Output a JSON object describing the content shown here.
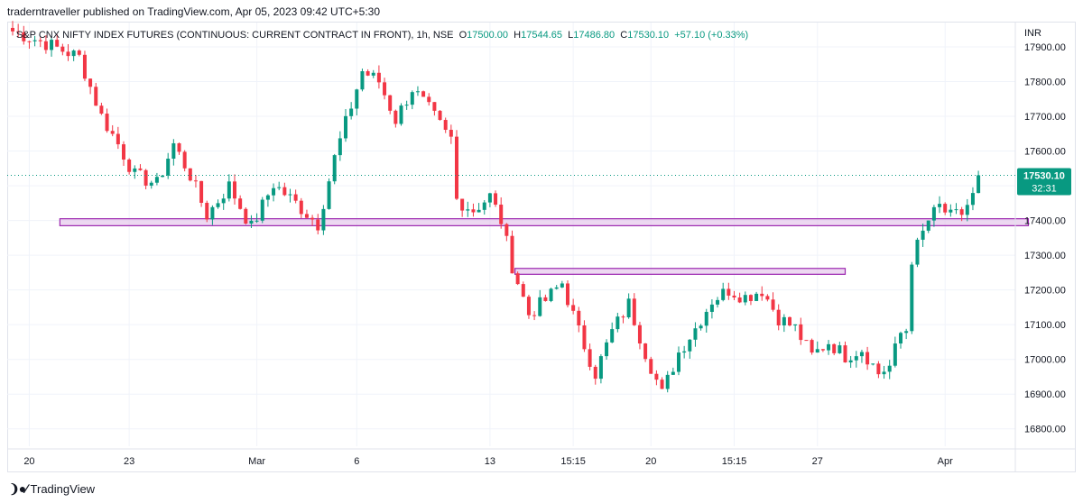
{
  "publish_line": "traderntraveller published on TradingView.com, Apr 05, 2023 09:42 UTC+5:30",
  "header": {
    "symbol": "S&P CNX NIFTY INDEX FUTURES (CONTINUOUS: CURRENT CONTRACT IN FRONT), 1h, NSE",
    "open_label": "O",
    "open_value": "17500.00",
    "high_label": "H",
    "high_value": "17544.65",
    "low_label": "L",
    "low_value": "17486.80",
    "close_label": "C",
    "close_value": "17530.10",
    "change": "+57.10 (+0.33%)"
  },
  "currency": "INR",
  "footer": {
    "brand": "TradingView",
    "icon": "tradingview-logo-icon"
  },
  "colors": {
    "up": "#089981",
    "down": "#f23645",
    "zone_stroke": "#9c27b0",
    "zone_fill": "#e1bee7",
    "grid": "#f0f3fa"
  },
  "chart_data": {
    "type": "candlestick",
    "ylim": [
      16750,
      17970
    ],
    "yticks": [
      17900,
      17800,
      17700,
      17600,
      17500,
      17400,
      17300,
      17200,
      17100,
      17000,
      16900,
      16800
    ],
    "ytick_labels": [
      "17900.00",
      "17800.00",
      "17700.00",
      "17600.00",
      "17500.00",
      "17400.00",
      "17300.00",
      "17200.00",
      "17100.00",
      "17000.00",
      "16900.00",
      "16800.00"
    ],
    "bar_count": 175,
    "xtick_labels": [
      {
        "label": "20",
        "bar": 3
      },
      {
        "label": "23",
        "bar": 21
      },
      {
        "label": "Mar",
        "bar": 44
      },
      {
        "label": "6",
        "bar": 62
      },
      {
        "label": "13",
        "bar": 86
      },
      {
        "label": "15:15",
        "bar": 101
      },
      {
        "label": "20",
        "bar": 115
      },
      {
        "label": "15:15",
        "bar": 130
      },
      {
        "label": "27",
        "bar": 145
      },
      {
        "label": "Apr",
        "bar": 168
      }
    ],
    "last_price": 17530.1,
    "last_price_label": "17530.10",
    "countdown_label": "32:31",
    "zones": [
      {
        "bar_start": 9,
        "bar_end": 183,
        "low": 17385,
        "high": 17405
      },
      {
        "bar_start": 91,
        "bar_end": 150,
        "low": 17245,
        "high": 17262
      }
    ],
    "anchors": [
      {
        "bar": 0,
        "price": 17945
      },
      {
        "bar": 6,
        "price": 17910
      },
      {
        "bar": 12,
        "price": 17870
      },
      {
        "bar": 16,
        "price": 17700
      },
      {
        "bar": 19,
        "price": 17620
      },
      {
        "bar": 22,
        "price": 17530
      },
      {
        "bar": 26,
        "price": 17505
      },
      {
        "bar": 29,
        "price": 17620
      },
      {
        "bar": 32,
        "price": 17530
      },
      {
        "bar": 35,
        "price": 17415
      },
      {
        "bar": 39,
        "price": 17500
      },
      {
        "bar": 43,
        "price": 17380
      },
      {
        "bar": 47,
        "price": 17505
      },
      {
        "bar": 51,
        "price": 17450
      },
      {
        "bar": 55,
        "price": 17390
      },
      {
        "bar": 58,
        "price": 17580
      },
      {
        "bar": 63,
        "price": 17830
      },
      {
        "bar": 66,
        "price": 17800
      },
      {
        "bar": 69,
        "price": 17690
      },
      {
        "bar": 72,
        "price": 17780
      },
      {
        "bar": 75,
        "price": 17720
      },
      {
        "bar": 78,
        "price": 17650
      },
      {
        "bar": 79,
        "price": 17635
      },
      {
        "bar": 80,
        "price": 17460
      },
      {
        "bar": 83,
        "price": 17430
      },
      {
        "bar": 86,
        "price": 17470
      },
      {
        "bar": 88,
        "price": 17400
      },
      {
        "bar": 90,
        "price": 17270
      },
      {
        "bar": 93,
        "price": 17130
      },
      {
        "bar": 96,
        "price": 17170
      },
      {
        "bar": 99,
        "price": 17220
      },
      {
        "bar": 102,
        "price": 17080
      },
      {
        "bar": 105,
        "price": 16960
      },
      {
        "bar": 108,
        "price": 17080
      },
      {
        "bar": 111,
        "price": 17160
      },
      {
        "bar": 114,
        "price": 17020
      },
      {
        "bar": 117,
        "price": 16900
      },
      {
        "bar": 120,
        "price": 17020
      },
      {
        "bar": 123,
        "price": 17090
      },
      {
        "bar": 126,
        "price": 17170
      },
      {
        "bar": 129,
        "price": 17200
      },
      {
        "bar": 132,
        "price": 17180
      },
      {
        "bar": 135,
        "price": 17200
      },
      {
        "bar": 138,
        "price": 17120
      },
      {
        "bar": 141,
        "price": 17090
      },
      {
        "bar": 144,
        "price": 17010
      },
      {
        "bar": 147,
        "price": 17050
      },
      {
        "bar": 150,
        "price": 17010
      },
      {
        "bar": 153,
        "price": 17030
      },
      {
        "bar": 156,
        "price": 16960
      },
      {
        "bar": 158,
        "price": 16980
      },
      {
        "bar": 160,
        "price": 17075
      },
      {
        "bar": 161,
        "price": 17085
      },
      {
        "bar": 162,
        "price": 17290
      },
      {
        "bar": 165,
        "price": 17400
      },
      {
        "bar": 167,
        "price": 17440
      },
      {
        "bar": 169,
        "price": 17410
      },
      {
        "bar": 171,
        "price": 17420
      },
      {
        "bar": 173,
        "price": 17470
      },
      {
        "bar": 174,
        "price": 17530
      }
    ]
  }
}
